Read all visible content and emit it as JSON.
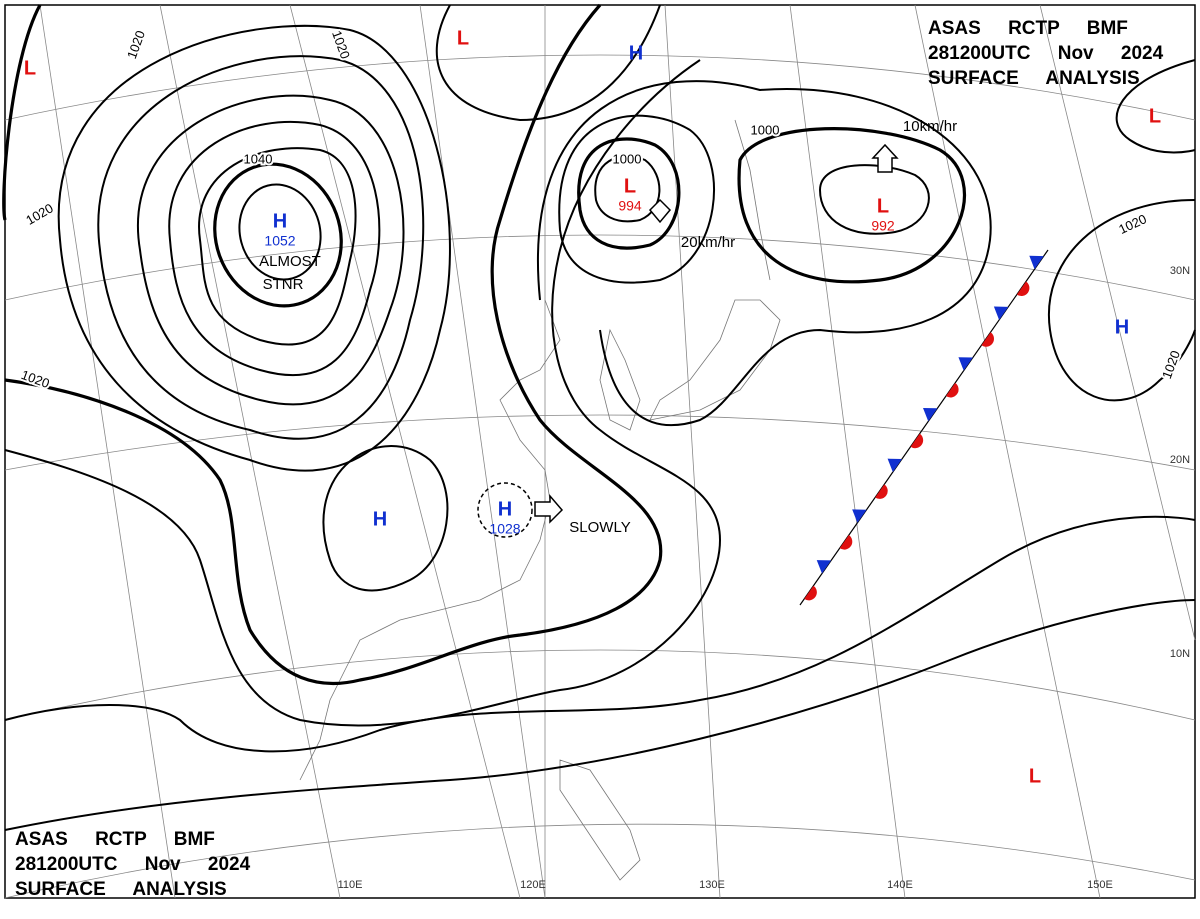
{
  "header": {
    "lines": [
      "ASAS RCTP BMF",
      "281200UTC Nov 2024",
      "SURFACE ANALYSIS"
    ]
  },
  "footer": {
    "lines": [
      "ASAS RCTP BMF",
      "281200UTC Nov 2024",
      "SURFACE ANALYSIS"
    ]
  },
  "centers": [
    {
      "label": "H",
      "value": "1052",
      "color": "#1030d0"
    },
    {
      "label": "H",
      "color": "#1030d0"
    },
    {
      "label": "H",
      "value": "1028",
      "color": "#1030d0"
    },
    {
      "label": "H",
      "color": "#1030d0"
    },
    {
      "label": "H",
      "color": "#1030d0"
    },
    {
      "label": "L",
      "color": "#e01010"
    },
    {
      "label": "L",
      "color": "#e01010"
    },
    {
      "label": "L",
      "value": "994",
      "color": "#e01010"
    },
    {
      "label": "L",
      "value": "992",
      "color": "#e01010"
    },
    {
      "label": "L",
      "color": "#e01010"
    },
    {
      "label": "L",
      "color": "#e01010"
    }
  ],
  "isobar_labels": [
    "1020",
    "1020",
    "1040",
    "1020",
    "1020",
    "1000",
    "1000",
    "1020",
    "1020"
  ],
  "annotations": [
    "ALMOST",
    "STNR",
    "SLOWLY",
    "10km/hr",
    "20km/hr"
  ],
  "longitudes": [
    "110E",
    "120E",
    "130E",
    "140E",
    "150E"
  ],
  "latitudes": [
    "30N",
    "20N",
    "10N"
  ]
}
